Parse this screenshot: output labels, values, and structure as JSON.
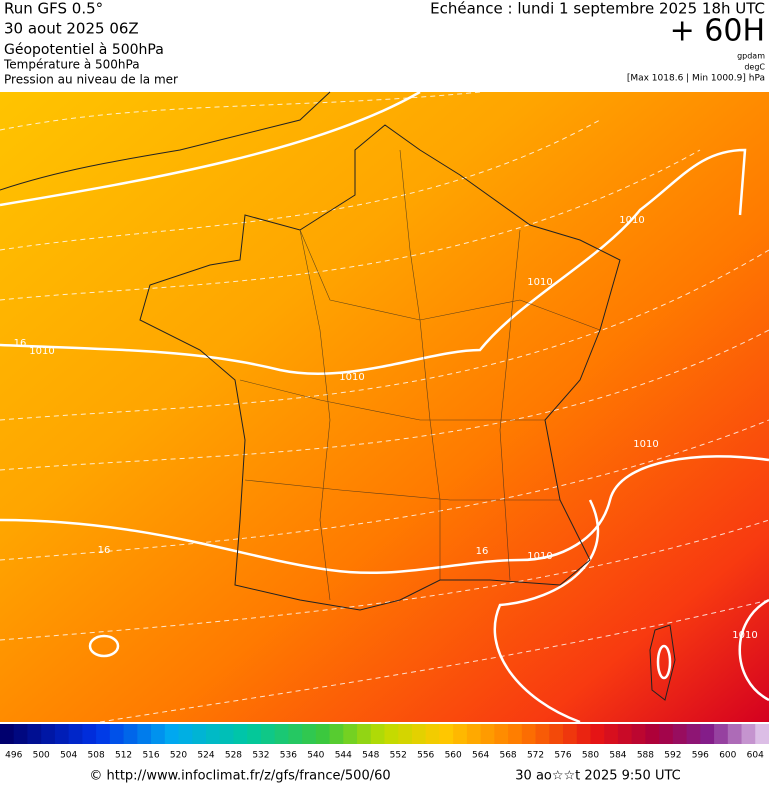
{
  "header": {
    "run": "Run GFS 0.5°",
    "run_date": "30 aout 2025 06Z",
    "title": "Géopotentiel à 500hPa",
    "subtitle1": "Température à 500hPa",
    "subtitle2": "Pression au niveau de la mer",
    "forecast_time": "Echéance : lundi 1 septembre 2025 18h UTC",
    "lead": "+ 60H",
    "unit1": "gpdam",
    "unit2": "degC",
    "minmax": "[Max 1018.6 | Min 1000.9] hPa"
  },
  "map": {
    "contour_labels": [
      "1010",
      "1010",
      "1010",
      "1010",
      "1010",
      "1010",
      "1010",
      "16",
      "16",
      "16"
    ]
  },
  "colorbar": {
    "labels": [
      496,
      500,
      504,
      508,
      512,
      516,
      520,
      524,
      528,
      532,
      536,
      540,
      544,
      548,
      552,
      556,
      560,
      564,
      568,
      572,
      576,
      580,
      584,
      588,
      592,
      596,
      600,
      604
    ]
  },
  "footer": {
    "url": "© http://www.infoclimat.fr/z/gfs/france/500/60",
    "time": "30 ao☆☆t 2025  9:50 UTC"
  }
}
